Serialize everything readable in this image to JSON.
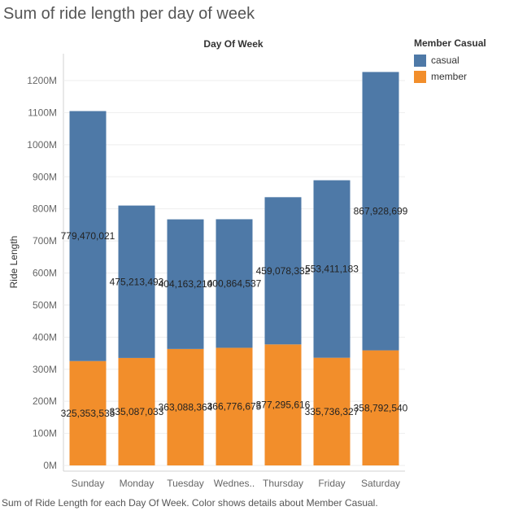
{
  "title": "Sum of ride length per day of week",
  "footer": "Sum of Ride Length for each Day Of Week.  Color shows details about Member Casual.",
  "legend": {
    "title": "Member Casual",
    "items": [
      {
        "label": "casual",
        "color": "#4e79a7"
      },
      {
        "label": "member",
        "color": "#f28e2b"
      }
    ]
  },
  "chart_data": {
    "type": "bar",
    "stacked": true,
    "column_header": "Day Of Week",
    "ylabel": "Ride Length",
    "categories": [
      "Sunday",
      "Monday",
      "Tuesday",
      "Wednes..",
      "Thursday",
      "Friday",
      "Saturday"
    ],
    "series": [
      {
        "name": "member",
        "color": "#f28e2b",
        "values": [
          325353535,
          335087033,
          363088364,
          366776675,
          377295616,
          335736327,
          358792540
        ],
        "labels": [
          "325,353,535",
          "335,087,033",
          "363,088,364",
          "366,776,675",
          "377,295,616",
          "335,736,327",
          "358,792,540"
        ]
      },
      {
        "name": "casual",
        "color": "#4e79a7",
        "values": [
          779470021,
          475213493,
          404163210,
          400864537,
          459078332,
          553411183,
          867928699
        ],
        "labels": [
          "779,470,021",
          "475,213,493",
          "404,163,210",
          "400,864,537",
          "459,078,332",
          "553,411,183",
          "867,928,699"
        ]
      }
    ],
    "yticks": [
      0,
      100000000,
      200000000,
      300000000,
      400000000,
      500000000,
      600000000,
      700000000,
      800000000,
      900000000,
      1000000000,
      1100000000,
      1200000000
    ],
    "ytick_labels": [
      "0M",
      "100M",
      "200M",
      "300M",
      "400M",
      "500M",
      "600M",
      "700M",
      "800M",
      "900M",
      "1000M",
      "1100M",
      "1200M"
    ],
    "ylim": [
      0,
      1260000000
    ],
    "grid": true
  }
}
